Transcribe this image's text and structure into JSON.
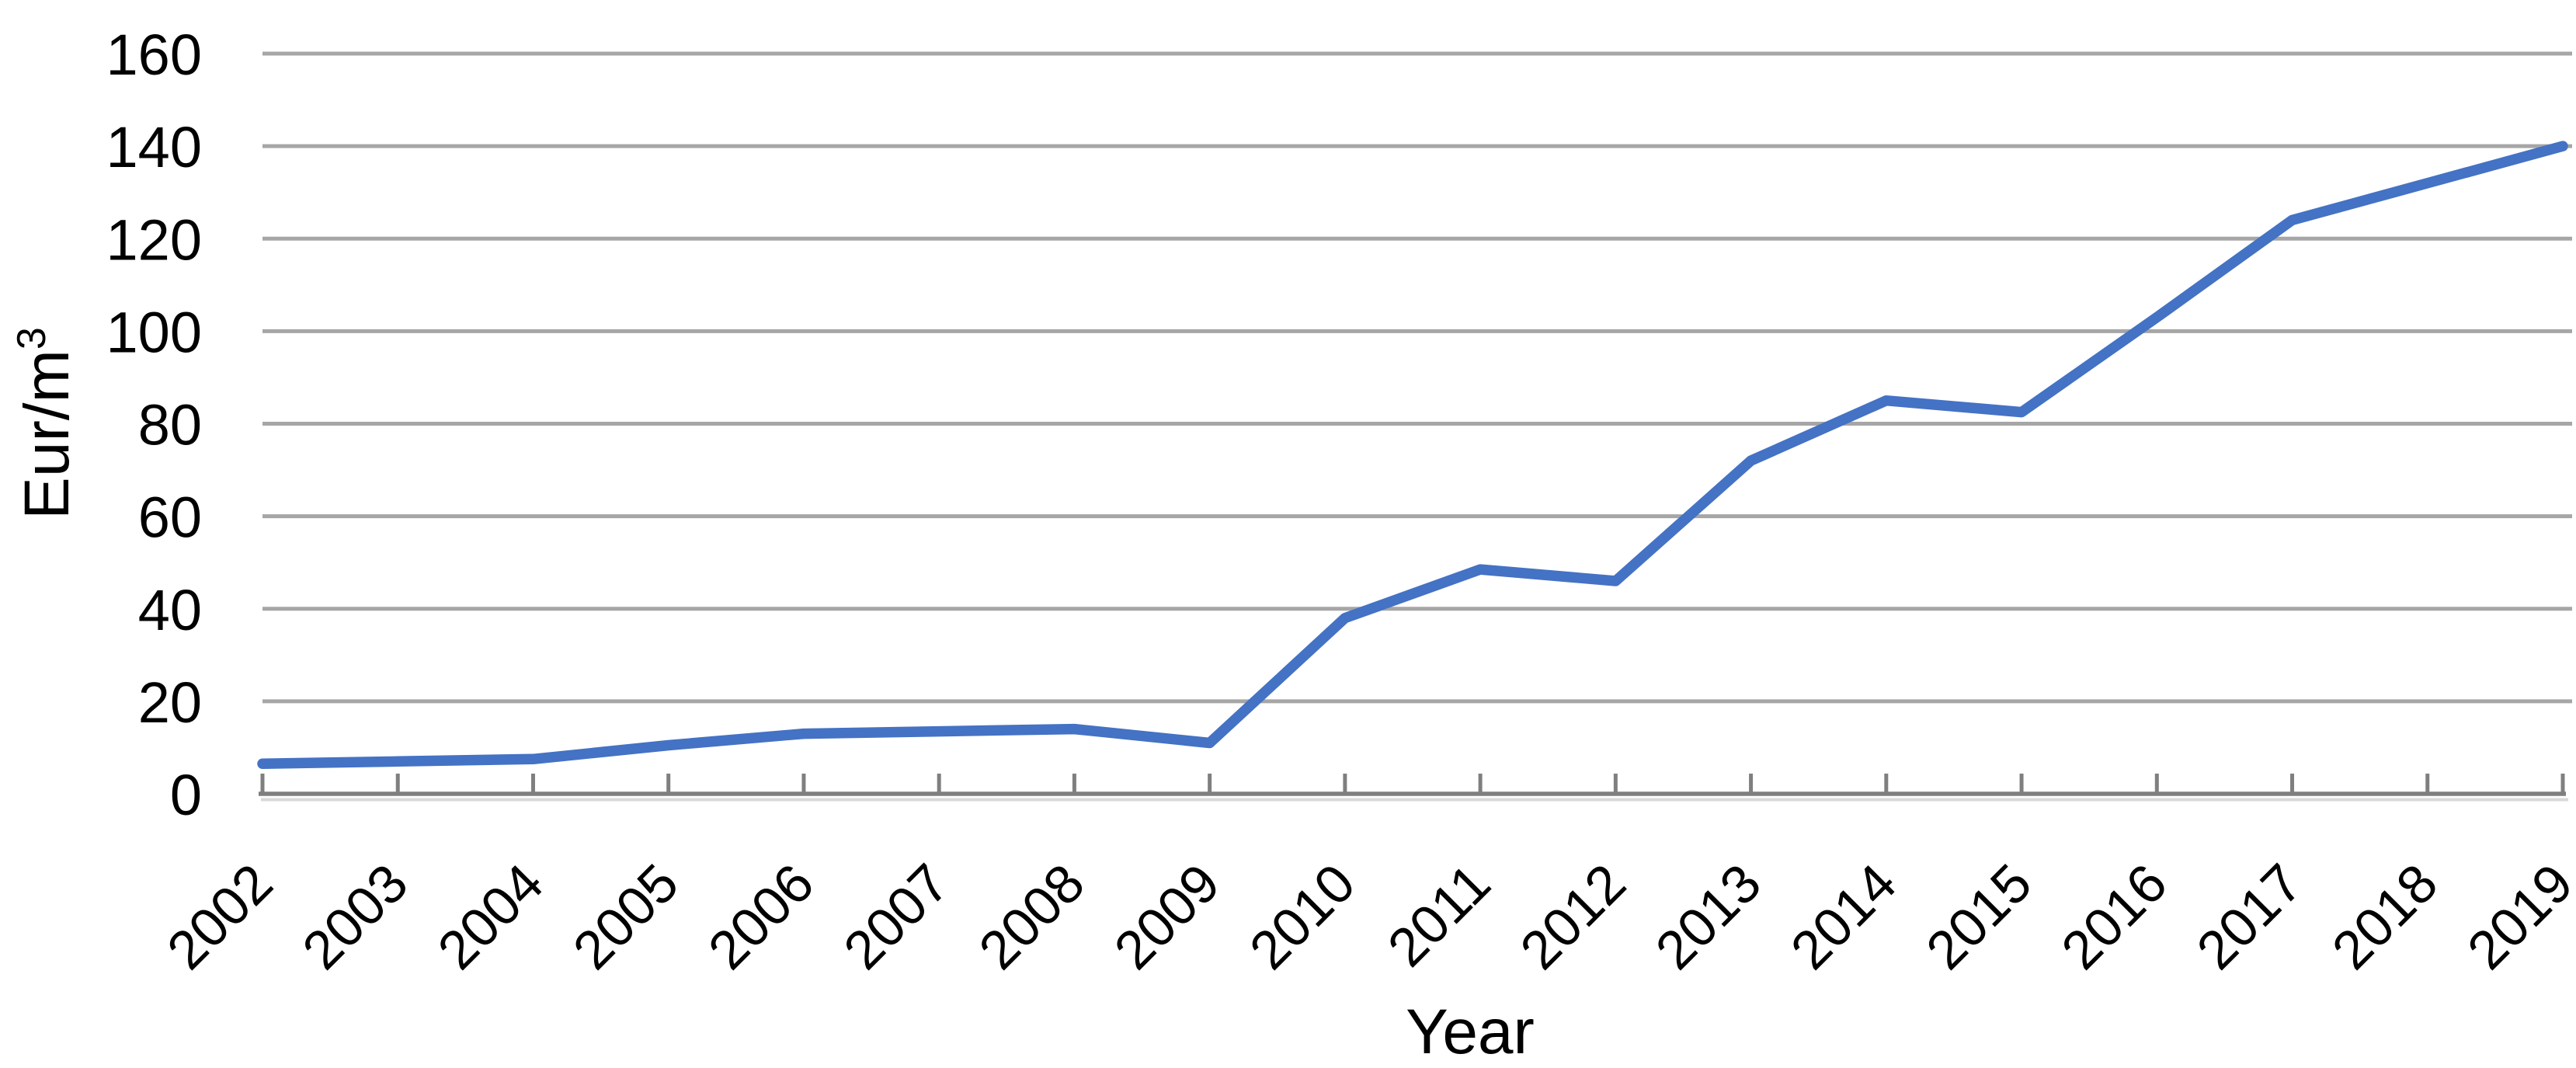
{
  "chart_data": {
    "type": "line",
    "title": "",
    "xlabel": "Year",
    "ylabel": "Eur/m³",
    "categories": [
      "2002",
      "2003",
      "2004",
      "2005",
      "2006",
      "2007",
      "2008",
      "2009",
      "2010",
      "2011",
      "2012",
      "2013",
      "2014",
      "2015",
      "2016",
      "2017",
      "2018",
      "2019"
    ],
    "values": [
      6.5,
      7,
      7.5,
      10.5,
      13,
      13.5,
      14,
      11,
      38,
      48.5,
      46,
      72,
      85,
      82.5,
      103,
      124,
      132,
      140
    ],
    "ylim": [
      0,
      160
    ],
    "yticks": [
      0,
      20,
      40,
      60,
      80,
      100,
      120,
      140,
      160
    ],
    "grid": "horizontal",
    "legend": "none",
    "colors": {
      "line": "#4472C4",
      "gridline": "#A6A6A6",
      "axis": "#7F7F7F",
      "axis_shadow": "#D9D9D9",
      "text": "#000000",
      "background": "#FFFFFF"
    }
  }
}
